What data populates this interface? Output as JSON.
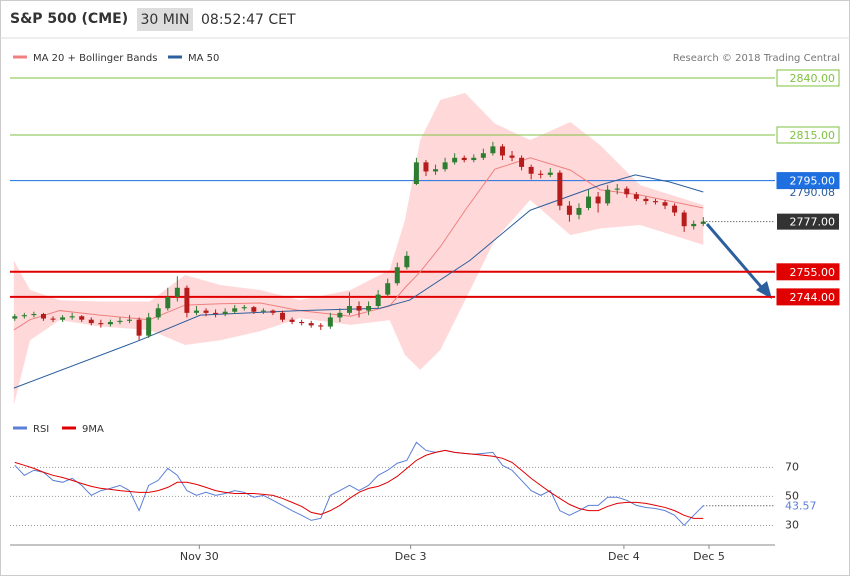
{
  "header": {
    "symbol": "S&P 500 (CME)",
    "interval": "30 MIN",
    "time": "08:52:47 CET"
  },
  "chart_data": [
    {
      "type": "candlestick",
      "credit": "Research © 2018 Trading Central",
      "xlim": [
        0,
        80
      ],
      "ylim": [
        2694,
        2846
      ],
      "up_color": "#2e7d32",
      "down_color": "#b71c1c",
      "candles": [
        [
          2734.5,
          2736.5,
          2733.5,
          2735.5
        ],
        [
          2735.5,
          2737,
          2734.5,
          2736
        ],
        [
          2736,
          2737.5,
          2735,
          2736.5
        ],
        [
          2736.5,
          2737,
          2733.5,
          2734.5
        ],
        [
          2734.5,
          2735.5,
          2733,
          2734
        ],
        [
          2734,
          2736,
          2733,
          2735
        ],
        [
          2735,
          2737,
          2734,
          2735.5
        ],
        [
          2735.5,
          2736,
          2733,
          2734
        ],
        [
          2734,
          2735,
          2731.5,
          2732.5
        ],
        [
          2732.5,
          2734,
          2730.5,
          2732
        ],
        [
          2732,
          2734,
          2731,
          2733
        ],
        [
          2733,
          2735,
          2732,
          2733.5
        ],
        [
          2733.5,
          2736,
          2732.5,
          2734
        ],
        [
          2734,
          2735,
          2725,
          2727
        ],
        [
          2727,
          2737,
          2726,
          2735
        ],
        [
          2735,
          2741,
          2734,
          2739
        ],
        [
          2739,
          2748,
          2738,
          2744
        ],
        [
          2744,
          2753,
          2742,
          2748
        ],
        [
          2748,
          2749,
          2735,
          2737
        ],
        [
          2737,
          2740,
          2736,
          2738
        ],
        [
          2738,
          2739,
          2735.5,
          2737
        ],
        [
          2737,
          2738.5,
          2735,
          2736.5
        ],
        [
          2736.5,
          2739,
          2735.5,
          2737.5
        ],
        [
          2737.5,
          2740.5,
          2736.5,
          2739
        ],
        [
          2739,
          2740.5,
          2738,
          2739.5
        ],
        [
          2739.5,
          2740,
          2736.5,
          2737.5
        ],
        [
          2737.5,
          2739,
          2736.5,
          2738
        ],
        [
          2738,
          2738.5,
          2736,
          2737
        ],
        [
          2737,
          2738,
          2733,
          2734
        ],
        [
          2734,
          2735,
          2732,
          2733
        ],
        [
          2733,
          2734,
          2731.5,
          2732.5
        ],
        [
          2732.5,
          2733.5,
          2730.5,
          2731.5
        ],
        [
          2731.5,
          2732.5,
          2729.5,
          2731
        ],
        [
          2731,
          2737,
          2730,
          2735
        ],
        [
          2735,
          2739,
          2733,
          2737
        ],
        [
          2737,
          2746,
          2736,
          2740
        ],
        [
          2740,
          2742,
          2735,
          2738
        ],
        [
          2738,
          2742,
          2736,
          2740
        ],
        [
          2740,
          2747,
          2739,
          2745
        ],
        [
          2745,
          2752,
          2744,
          2750
        ],
        [
          2750,
          2759,
          2749,
          2757
        ],
        [
          2757,
          2764,
          2756,
          2762
        ],
        [
          2793.5,
          2805,
          2793,
          2803
        ],
        [
          2803,
          2804,
          2797,
          2799
        ],
        [
          2799,
          2802,
          2797.5,
          2800
        ],
        [
          2800,
          2805,
          2799,
          2803
        ],
        [
          2803,
          2807,
          2802,
          2805
        ],
        [
          2805,
          2806,
          2803,
          2804
        ],
        [
          2804,
          2806.5,
          2803,
          2805
        ],
        [
          2805,
          2809,
          2804,
          2807
        ],
        [
          2807,
          2812,
          2806,
          2810
        ],
        [
          2810,
          2811,
          2804,
          2806
        ],
        [
          2806,
          2808,
          2803.5,
          2805
        ],
        [
          2805,
          2806,
          2799.5,
          2801
        ],
        [
          2801,
          2802,
          2795.5,
          2798
        ],
        [
          2798,
          2799.5,
          2796,
          2797.5
        ],
        [
          2797.5,
          2800.5,
          2796.5,
          2798.5
        ],
        [
          2798.5,
          2799.5,
          2782,
          2784
        ],
        [
          2784,
          2786,
          2777,
          2780
        ],
        [
          2780,
          2785,
          2778,
          2783
        ],
        [
          2783,
          2791,
          2782,
          2788
        ],
        [
          2788,
          2790,
          2781,
          2785
        ],
        [
          2785,
          2793,
          2784,
          2791
        ],
        [
          2791,
          2793.5,
          2789,
          2791.5
        ],
        [
          2791.5,
          2792.5,
          2787.5,
          2789
        ],
        [
          2789,
          2790,
          2786,
          2787
        ],
        [
          2787,
          2788,
          2784.5,
          2786
        ],
        [
          2786,
          2787,
          2784.5,
          2785.5
        ],
        [
          2785.5,
          2786.5,
          2782.5,
          2784
        ],
        [
          2784,
          2785,
          2779.5,
          2781
        ],
        [
          2781,
          2782,
          2772.5,
          2775
        ],
        [
          2775,
          2777.5,
          2773.5,
          2776
        ],
        [
          2776,
          2779,
          2775,
          2777
        ]
      ],
      "series": [
        {
          "name": "MA 20 + Bollinger Bands",
          "color": "#f08080",
          "band_color": "#ffd9d9",
          "x": [
            0.4,
            2.1,
            5.2,
            9.4,
            14.6,
            18.3,
            22,
            26.2,
            30.3,
            35.6,
            39.7,
            41.3,
            42.9,
            45,
            47.6,
            50.7,
            54.4,
            58.6,
            61.7,
            65.9,
            72.5
          ],
          "values": [
            2729.5,
            2734,
            2738,
            2736,
            2734,
            2740.4,
            2741,
            2741.3,
            2738,
            2735.5,
            2740,
            2748,
            2755,
            2766,
            2782,
            2800,
            2805,
            2799.6,
            2791,
            2788.7,
            2783
          ],
          "upper": [
            2760,
            2747,
            2742.6,
            2742,
            2742,
            2753.6,
            2749.2,
            2747,
            2742.6,
            2747,
            2755.8,
            2777.7,
            2812.8,
            2830.4,
            2833.4,
            2820,
            2812.8,
            2820.7,
            2810.6,
            2793,
            2784.3
          ],
          "lower": [
            2696.6,
            2725,
            2733.8,
            2731,
            2729.5,
            2722.9,
            2725,
            2729,
            2734.7,
            2731.7,
            2733.8,
            2718.5,
            2712,
            2720.7,
            2742.6,
            2769,
            2786.5,
            2771.1,
            2774,
            2775.5,
            2766.8
          ]
        },
        {
          "name": "MA 50",
          "color": "#2c5f9e",
          "x": [
            0.4,
            13.6,
            19.9,
            30.3,
            38.7,
            41.8,
            48.1,
            54.4,
            61.7,
            65.4,
            69,
            72.5
          ],
          "values": [
            2704,
            2725,
            2736,
            2738,
            2739,
            2742.6,
            2760,
            2782,
            2793,
            2797.5,
            2794.4,
            2790
          ]
        }
      ],
      "levels": [
        {
          "value": 2840,
          "label": "2840.00",
          "color": "#7fc241",
          "style": "outline",
          "width": 1
        },
        {
          "value": 2815,
          "label": "2815.00",
          "color": "#7fc241",
          "style": "outline",
          "width": 1
        },
        {
          "value": 2795,
          "label": "2795.00",
          "color": "#1e6fe0",
          "style": "filled",
          "width": 1
        },
        {
          "value": 2755,
          "label": "2755.00",
          "color": "#e00000",
          "style": "filled",
          "width": 2
        },
        {
          "value": 2744,
          "label": "2744.00",
          "color": "#e00000",
          "style": "filled",
          "width": 2
        }
      ],
      "ma50_last": {
        "value": 2790.08,
        "label": "2790.08",
        "color": "#2c5f9e"
      },
      "last_price": {
        "value": 2777,
        "label": "2777.00",
        "color": "#333333"
      }
    },
    {
      "type": "line",
      "xlim": [
        0,
        80
      ],
      "ylim": [
        20,
        95
      ],
      "yticks": [
        70,
        50,
        30
      ],
      "xticks": [
        {
          "value": 19.8,
          "label": "Nov 30"
        },
        {
          "value": 41.9,
          "label": "Dec 3"
        },
        {
          "value": 64.2,
          "label": "Dec 4"
        },
        {
          "value": 73.1,
          "label": "Dec 5"
        }
      ],
      "series": [
        {
          "name": "RSI",
          "color": "#5b7fd6",
          "values": [
            71.4,
            64.5,
            68,
            66.6,
            61,
            59.7,
            62.4,
            57.6,
            50.7,
            54,
            55.5,
            57.6,
            54,
            40.2,
            57.6,
            61,
            69.3,
            64.5,
            54,
            50.7,
            52.8,
            50.7,
            52,
            54,
            52.8,
            49.4,
            50.7,
            47.3,
            43.8,
            40.2,
            37,
            33.5,
            34.9,
            50.7,
            54,
            57.6,
            54,
            57.6,
            64.5,
            68,
            72.8,
            74.8,
            87.2,
            81.7,
            80.3,
            81.7,
            80.3,
            79.6,
            79,
            79.6,
            80.3,
            71.4,
            68,
            61,
            54,
            50.7,
            54,
            40.2,
            37,
            40.2,
            43.8,
            43.8,
            49.4,
            49.4,
            47.3,
            43.8,
            42.4,
            41.7,
            40.2,
            37,
            30.1,
            37,
            43.57
          ]
        },
        {
          "name": "9MA",
          "color": "#e00000",
          "values": [
            73.4,
            71.4,
            69.3,
            66.6,
            64.5,
            63,
            61,
            58.9,
            56.9,
            55.5,
            54.8,
            54,
            53.4,
            52.8,
            52.8,
            54,
            56.2,
            59.7,
            59.7,
            58.3,
            56.2,
            54,
            52.8,
            52,
            52,
            52,
            51.4,
            50.7,
            48.6,
            45.9,
            43.1,
            39,
            37.6,
            40.2,
            43.8,
            48.6,
            52.8,
            55.5,
            56.9,
            59.7,
            63.8,
            69.3,
            74.8,
            78.3,
            80.3,
            81.7,
            80.3,
            79.6,
            79,
            78.3,
            77.6,
            76.2,
            73.4,
            68,
            62.4,
            57.6,
            52.8,
            48.6,
            44.5,
            41.7,
            40.2,
            40.2,
            43.1,
            45.2,
            45.9,
            45.9,
            45.2,
            43.8,
            42.4,
            40.2,
            37,
            34.9,
            34.9
          ]
        }
      ]
    }
  ]
}
